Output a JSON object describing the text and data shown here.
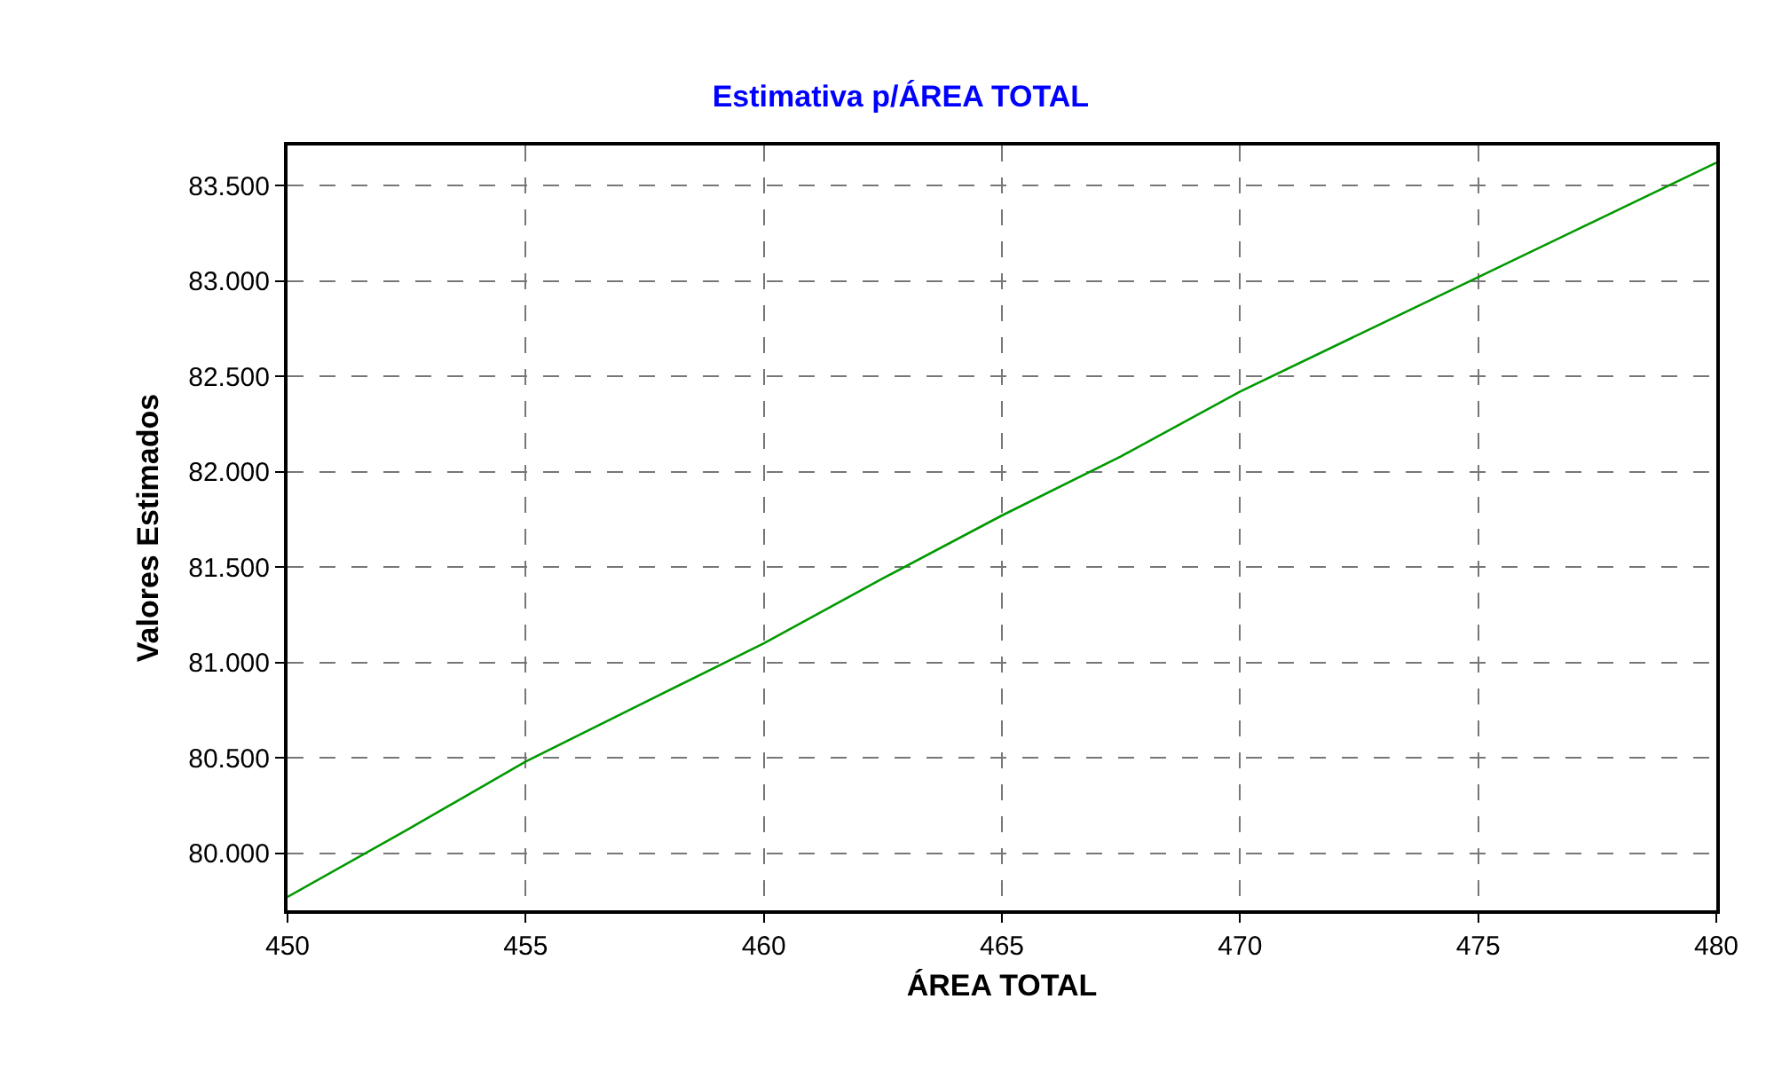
{
  "chart_data": {
    "type": "line",
    "title": "Estimativa p/ÁREA TOTAL",
    "xlabel": "ÁREA TOTAL",
    "ylabel": "Valores Estimados",
    "x": [
      450,
      452.5,
      455,
      457.5,
      460,
      462.5,
      465,
      467.5,
      470,
      472.5,
      475,
      477.5,
      480
    ],
    "series": [
      {
        "color": "#009900",
        "values": [
          79770,
          80120,
          80480,
          80790,
          81100,
          81440,
          81770,
          82080,
          82420,
          82720,
          83020,
          83320,
          83620
        ]
      }
    ],
    "xlim": [
      450,
      480
    ],
    "xticks": [
      450,
      455,
      460,
      465,
      470,
      475,
      480
    ],
    "ylim": [
      79700,
      83710
    ],
    "yticks": [
      {
        "value": 80000,
        "label": "80.000"
      },
      {
        "value": 80500,
        "label": "80.500"
      },
      {
        "value": 81000,
        "label": "81.000"
      },
      {
        "value": 81500,
        "label": "81.500"
      },
      {
        "value": 82000,
        "label": "82.000"
      },
      {
        "value": 82500,
        "label": "82.500"
      },
      {
        "value": 83000,
        "label": "83.000"
      },
      {
        "value": 83500,
        "label": "83.500"
      }
    ],
    "grid": true,
    "marker": "none",
    "line_style": "solid"
  }
}
